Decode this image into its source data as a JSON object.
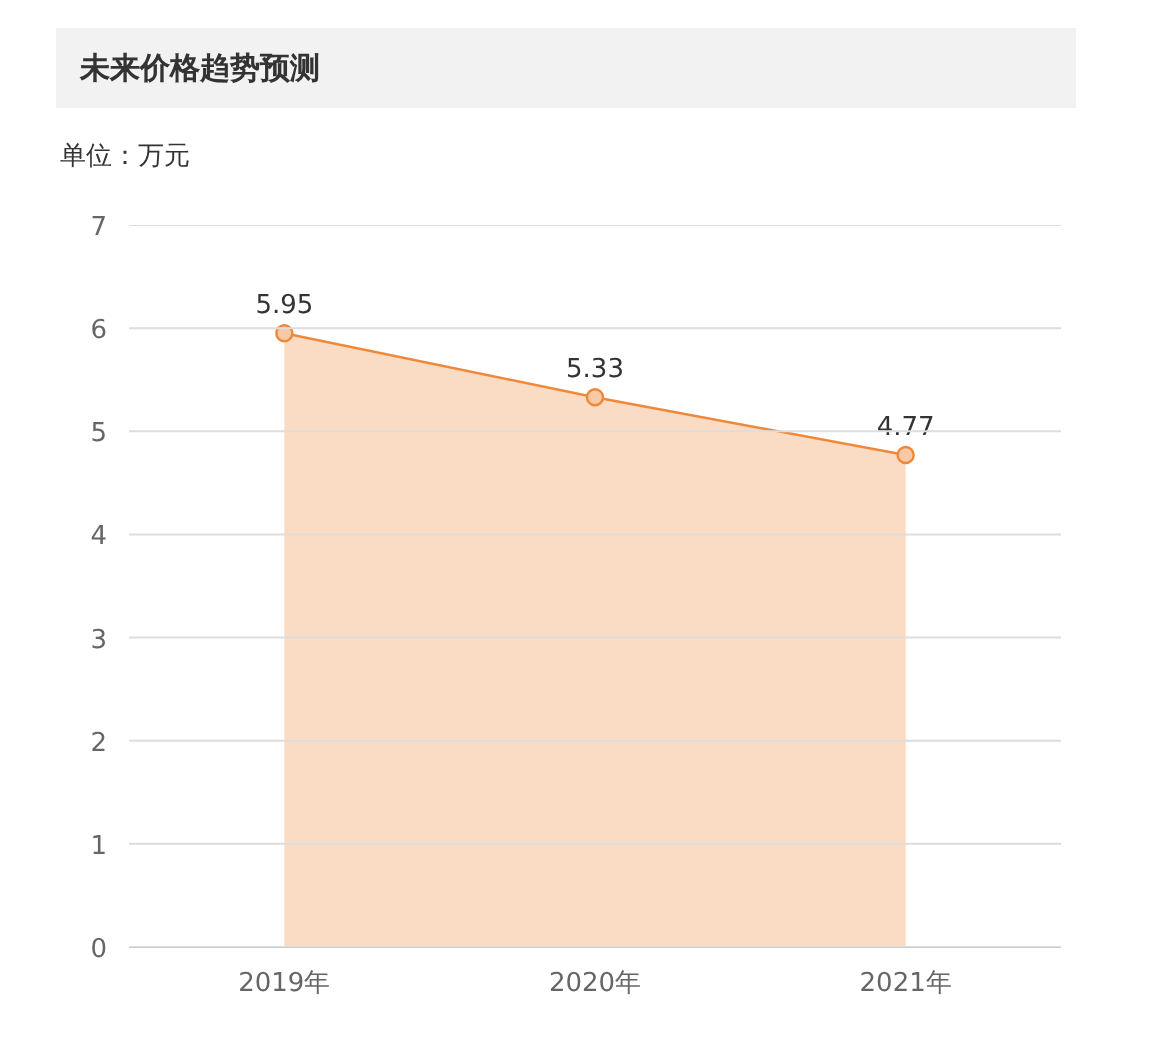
{
  "chart_data": {
    "type": "area",
    "title": "未来价格趋势预测",
    "ylabel": "单位：万元",
    "categories": [
      "2019年",
      "2020年",
      "2021年"
    ],
    "series": [
      {
        "color": "#f0883a",
        "values": [
          5.95,
          5.33,
          4.77
        ]
      }
    ],
    "ylim": [
      0,
      7
    ],
    "yticks": [
      0,
      1,
      2,
      3,
      4,
      5,
      6,
      7
    ],
    "grid": "y",
    "marker": "circle",
    "data_labels": true
  }
}
